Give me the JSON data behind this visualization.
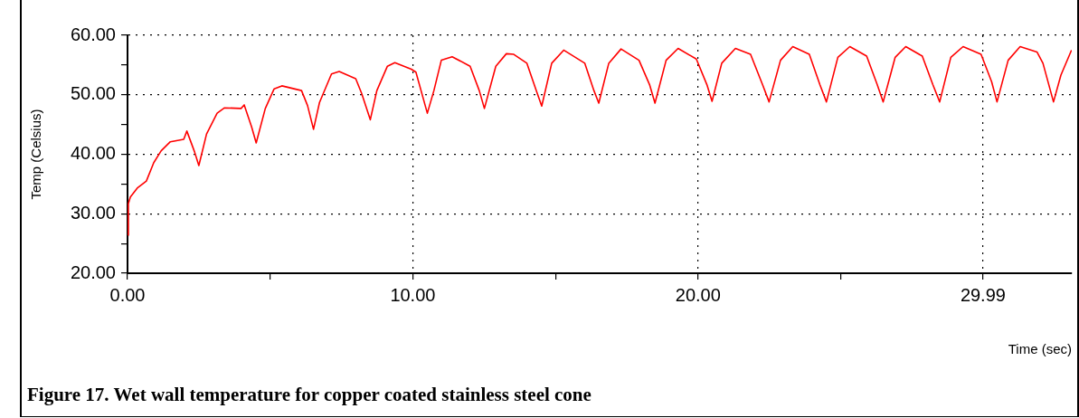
{
  "chart_data": {
    "type": "line",
    "xlabel": "Time (sec)",
    "ylabel": "Temp (Celsius)",
    "annotations": [
      "Figure 17. Wet wall temperature for copper coated stainless steel cone"
    ],
    "x": [
      0.02,
      0.03,
      0.1,
      0.34,
      0.66,
      0.92,
      1.18,
      1.5,
      1.97,
      2.08,
      2.35,
      2.5,
      2.77,
      3.14,
      3.4,
      3.98,
      4.09,
      4.35,
      4.51,
      4.83,
      5.14,
      5.41,
      6.1,
      6.31,
      6.52,
      6.73,
      7.15,
      7.42,
      8.0,
      8.21,
      8.51,
      8.74,
      9.11,
      9.37,
      9.95,
      10.11,
      10.51,
      10.74,
      11.0,
      11.38,
      12.01,
      12.33,
      12.51,
      12.91,
      13.28,
      13.54,
      14.0,
      14.33,
      14.52,
      14.87,
      15.29,
      16.03,
      16.35,
      16.52,
      16.87,
      17.3,
      17.93,
      18.3,
      18.49,
      18.88,
      19.3,
      19.94,
      20.31,
      20.49,
      20.83,
      21.31,
      21.84,
      22.26,
      22.49,
      22.89,
      23.32,
      23.9,
      24.27,
      24.5,
      24.9,
      25.32,
      25.91,
      26.28,
      26.49,
      26.91,
      27.28,
      27.86,
      28.23,
      28.47,
      28.86,
      29.29,
      29.92,
      30.29,
      30.48,
      30.87,
      31.29,
      31.88,
      32.09,
      32.46,
      32.72,
      33.09
    ],
    "series": [
      {
        "color": "#ff0000",
        "values": [
          26.4,
          31.7,
          32.8,
          34.3,
          35.5,
          38.6,
          40.6,
          42.1,
          42.5,
          43.9,
          40.4,
          38.1,
          43.4,
          46.9,
          47.8,
          47.7,
          48.3,
          44.6,
          41.9,
          47.7,
          51.0,
          51.5,
          50.7,
          48.2,
          44.2,
          48.7,
          53.5,
          53.9,
          52.7,
          50.2,
          45.8,
          50.7,
          54.8,
          55.4,
          54.3,
          53.8,
          46.9,
          50.7,
          55.8,
          56.4,
          54.8,
          50.7,
          47.7,
          54.8,
          56.9,
          56.8,
          55.3,
          50.7,
          48.1,
          55.3,
          57.5,
          55.3,
          50.7,
          48.6,
          55.3,
          57.7,
          55.8,
          51.7,
          48.6,
          55.8,
          57.8,
          56.0,
          51.7,
          48.9,
          55.3,
          57.8,
          56.8,
          51.7,
          48.8,
          55.8,
          58.1,
          56.8,
          51.7,
          48.8,
          56.3,
          58.1,
          56.5,
          51.7,
          48.8,
          56.3,
          58.1,
          56.5,
          51.7,
          48.8,
          56.3,
          58.1,
          56.8,
          52.2,
          48.8,
          55.8,
          58.1,
          57.2,
          55.3,
          48.8,
          53.3,
          57.5
        ]
      }
    ],
    "xlim": [
      0,
      33.1
    ],
    "xticks": [
      {
        "value": 0,
        "label": "0.00"
      },
      {
        "value": 5,
        "label": null
      },
      {
        "value": 10,
        "label": "10.00"
      },
      {
        "value": 15,
        "label": null
      },
      {
        "value": 20,
        "label": "20.00"
      },
      {
        "value": 25,
        "label": null
      },
      29.99
    ],
    "ylim": [
      20,
      60
    ],
    "yticks": [
      {
        "value": 20,
        "label": "20.00"
      },
      {
        "value": 25,
        "label": null
      },
      {
        "value": 30,
        "label": "30.00"
      },
      {
        "value": 35,
        "label": null
      },
      {
        "value": 40,
        "label": "40.00"
      },
      {
        "value": 45,
        "label": null
      },
      {
        "value": 50,
        "label": "50.00"
      },
      {
        "value": 55,
        "label": null
      },
      {
        "value": 60,
        "label": "60.00"
      }
    ],
    "grid": true,
    "legend": false
  }
}
